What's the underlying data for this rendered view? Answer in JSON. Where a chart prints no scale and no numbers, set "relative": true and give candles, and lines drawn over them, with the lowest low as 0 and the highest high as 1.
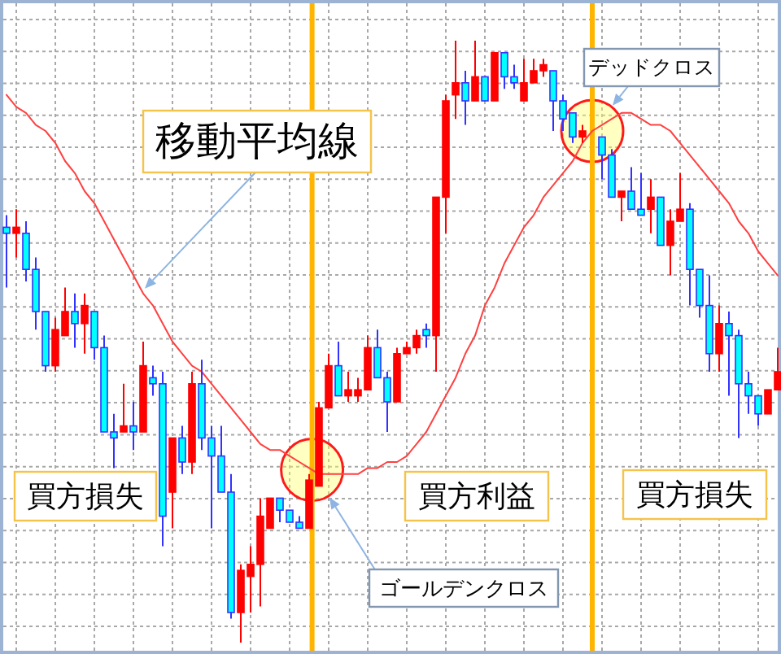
{
  "chart_data": {
    "type": "candlestick",
    "relative": true,
    "grid": true,
    "categories": [
      null,
      null,
      null,
      null,
      null,
      null,
      null,
      null,
      null,
      null,
      null,
      null,
      null,
      null,
      null,
      null,
      null,
      null,
      null,
      null,
      null,
      null,
      null,
      null,
      null,
      null,
      null,
      null,
      null,
      null,
      null,
      null,
      null,
      null,
      null,
      null,
      null,
      null,
      null,
      null,
      null,
      null,
      null,
      null,
      null,
      null,
      null,
      null,
      null,
      null,
      null,
      null,
      null,
      null,
      null,
      null,
      null,
      null,
      null,
      null,
      null,
      null,
      null,
      null,
      null,
      null,
      null,
      null,
      null,
      null,
      null,
      null,
      null,
      null,
      null,
      null,
      null,
      null,
      null,
      null
    ],
    "ohlc": [
      [
        0.69,
        0.71,
        0.59,
        0.68
      ],
      [
        0.68,
        0.72,
        0.64,
        0.69
      ],
      [
        0.68,
        0.7,
        0.6,
        0.62
      ],
      [
        0.62,
        0.64,
        0.52,
        0.55
      ],
      [
        0.55,
        0.55,
        0.45,
        0.46
      ],
      [
        0.46,
        0.54,
        0.45,
        0.52
      ],
      [
        0.51,
        0.59,
        0.51,
        0.55
      ],
      [
        0.55,
        0.58,
        0.49,
        0.53
      ],
      [
        0.53,
        0.58,
        0.48,
        0.56
      ],
      [
        0.55,
        0.55,
        0.47,
        0.49
      ],
      [
        0.49,
        0.51,
        0.35,
        0.35
      ],
      [
        0.35,
        0.38,
        0.29,
        0.34
      ],
      [
        0.35,
        0.43,
        0.35,
        0.36
      ],
      [
        0.36,
        0.4,
        0.32,
        0.35
      ],
      [
        0.35,
        0.5,
        0.35,
        0.46
      ],
      [
        0.44,
        0.46,
        0.41,
        0.43
      ],
      [
        0.43,
        0.45,
        0.16,
        0.21
      ],
      [
        0.25,
        0.34,
        0.19,
        0.34
      ],
      [
        0.34,
        0.36,
        0.28,
        0.3
      ],
      [
        0.3,
        0.45,
        0.28,
        0.43
      ],
      [
        0.43,
        0.47,
        0.32,
        0.34
      ],
      [
        0.34,
        0.36,
        0.19,
        0.31
      ],
      [
        0.31,
        0.36,
        0.25,
        0.25
      ],
      [
        0.25,
        0.28,
        0.04,
        0.05
      ],
      [
        0.05,
        0.13,
        0,
        0.12
      ],
      [
        0.11,
        0.16,
        0.05,
        0.13
      ],
      [
        0.13,
        0.24,
        0.06,
        0.21
      ],
      [
        0.19,
        0.24,
        0.19,
        0.24
      ],
      [
        0.24,
        0.24,
        0.2,
        0.22
      ],
      [
        0.22,
        0.22,
        0.2,
        0.2
      ],
      [
        0.2,
        0.21,
        0.19,
        0.19
      ],
      [
        0.19,
        0.28,
        0.19,
        0.27
      ],
      [
        0.26,
        0.4,
        0.26,
        0.39
      ],
      [
        0.39,
        0.48,
        0.39,
        0.46
      ],
      [
        0.46,
        0.5,
        0.41,
        0.41
      ],
      [
        0.41,
        0.45,
        0.4,
        0.42
      ],
      [
        0.41,
        0.44,
        0.4,
        0.42
      ],
      [
        0.42,
        0.51,
        0.42,
        0.49
      ],
      [
        0.49,
        0.52,
        0.44,
        0.44
      ],
      [
        0.44,
        0.45,
        0.35,
        0.4
      ],
      [
        0.4,
        0.49,
        0.4,
        0.48
      ],
      [
        0.48,
        0.5,
        0.48,
        0.49
      ],
      [
        0.49,
        0.52,
        0.48,
        0.51
      ],
      [
        0.52,
        0.53,
        0.49,
        0.51
      ],
      [
        0.51,
        0.74,
        0.45,
        0.74
      ],
      [
        0.74,
        0.91,
        0.68,
        0.9
      ],
      [
        0.91,
        1,
        0.87,
        0.93
      ],
      [
        0.93,
        0.95,
        0.86,
        0.9
      ],
      [
        0.9,
        1,
        0.9,
        0.94
      ],
      [
        0.94,
        0.94,
        0.9,
        0.9
      ],
      [
        0.9,
        0.98,
        0.9,
        0.98
      ],
      [
        0.98,
        0.98,
        0.92,
        0.94
      ],
      [
        0.94,
        0.96,
        0.92,
        0.93
      ],
      [
        0.9,
        0.97,
        0.9,
        0.93
      ],
      [
        0.93,
        0.97,
        0.93,
        0.95
      ],
      [
        0.95,
        0.97,
        0.94,
        0.96
      ],
      [
        0.95,
        0.95,
        0.85,
        0.9
      ],
      [
        0.9,
        0.91,
        0.85,
        0.87
      ],
      [
        0.88,
        0.88,
        0.83,
        0.84
      ],
      [
        0.84,
        0.86,
        0.83,
        0.85
      ],
      null,
      [
        0.84,
        0.84,
        0.77,
        0.81
      ],
      [
        0.81,
        0.82,
        0.74,
        0.74
      ],
      [
        0.74,
        0.75,
        0.7,
        0.75
      ],
      [
        0.75,
        0.79,
        0.72,
        0.72
      ],
      [
        0.72,
        0.78,
        0.71,
        0.71
      ],
      [
        0.72,
        0.77,
        0.68,
        0.74
      ],
      [
        0.74,
        0.74,
        0.66,
        0.66
      ],
      [
        0.66,
        0.72,
        0.61,
        0.7
      ],
      [
        0.7,
        0.78,
        0.7,
        0.72
      ],
      [
        0.72,
        0.73,
        0.56,
        0.62
      ],
      [
        0.62,
        0.62,
        0.54,
        0.56
      ],
      [
        0.56,
        0.61,
        0.45,
        0.48
      ],
      [
        0.48,
        0.56,
        0.45,
        0.53
      ],
      [
        0.53,
        0.55,
        0.41,
        0.51
      ],
      [
        0.51,
        0.52,
        0.34,
        0.43
      ],
      [
        0.43,
        0.45,
        0.38,
        0.41
      ],
      [
        0.41,
        0.41,
        0.36,
        0.38
      ],
      [
        0.38,
        0.42,
        0.38,
        0.42
      ],
      [
        0.42,
        0.49,
        0.42,
        0.45
      ]
    ],
    "colors": [
      "#00ffff",
      "#ff0000",
      "#00ffff",
      "#00ffff",
      "#00ffff",
      "#ff0000",
      "#ff0000",
      "#00ffff",
      "#ff0000",
      "#00ffff",
      "#00ffff",
      "#00ffff",
      "#ff0000",
      "#00ffff",
      "#ff0000",
      "#00ffff",
      "#00ffff",
      "#ff0000",
      "#00ffff",
      "#ff0000",
      "#00ffff",
      "#00ffff",
      "#00ffff",
      "#00ffff",
      "#ff0000",
      "#ff0000",
      "#ff0000",
      "#ff0000",
      "#00ffff",
      "#00ffff",
      "#00ffff",
      "#ff0000",
      "#ff0000",
      "#ff0000",
      "#00ffff",
      "#ff0000",
      "#ff0000",
      "#ff0000",
      "#00ffff",
      "#00ffff",
      "#ff0000",
      "#ff0000",
      "#ff0000",
      "#00ffff",
      "#ff0000",
      "#ff0000",
      "#ff0000",
      "#00ffff",
      "#ff0000",
      "#00ffff",
      "#ff0000",
      "#00ffff",
      "#00ffff",
      "#ff0000",
      "#ff0000",
      "#ff0000",
      "#00ffff",
      "#00ffff",
      "#00ffff",
      "#ff0000",
      null,
      "#00ffff",
      "#00ffff",
      "#ff0000",
      "#00ffff",
      "#00ffff",
      "#ff0000",
      "#00ffff",
      "#ff0000",
      "#ff0000",
      "#00ffff",
      "#00ffff",
      "#00ffff",
      "#ff0000",
      "#00ffff",
      "#00ffff",
      "#00ffff",
      "#00ffff",
      "#ff0000",
      "#ff0000"
    ],
    "series": [
      {
        "type": "line",
        "name": "移動平均線",
        "color": "#ff4040",
        "values": [
          0.91,
          0.89,
          0.88,
          0.86,
          0.85,
          0.83,
          0.8,
          0.78,
          0.75,
          0.73,
          0.7,
          0.67,
          0.64,
          0.61,
          0.58,
          0.56,
          0.53,
          0.5,
          0.48,
          0.46,
          0.45,
          0.43,
          0.41,
          0.39,
          0.37,
          0.35,
          0.33,
          0.32,
          0.32,
          0.31,
          0.3,
          0.29,
          0.28,
          0.28,
          0.28,
          0.28,
          0.28,
          0.29,
          0.29,
          0.3,
          0.3,
          0.31,
          0.33,
          0.35,
          0.38,
          0.41,
          0.44,
          0.48,
          0.51,
          0.56,
          0.59,
          0.63,
          0.66,
          0.69,
          0.71,
          0.74,
          0.76,
          0.78,
          0.8,
          0.83,
          0.85,
          0.86,
          0.87,
          0.88,
          0.88,
          0.87,
          0.86,
          0.86,
          0.85,
          0.83,
          0.81,
          0.79,
          0.77,
          0.75,
          0.73,
          0.7,
          0.68,
          0.65,
          0.63,
          0.61
        ]
      }
    ],
    "annotations": [
      "買方損失",
      "買方利益",
      "買方損失",
      "ゴールデンクロス",
      "デッドクロス"
    ]
  }
}
